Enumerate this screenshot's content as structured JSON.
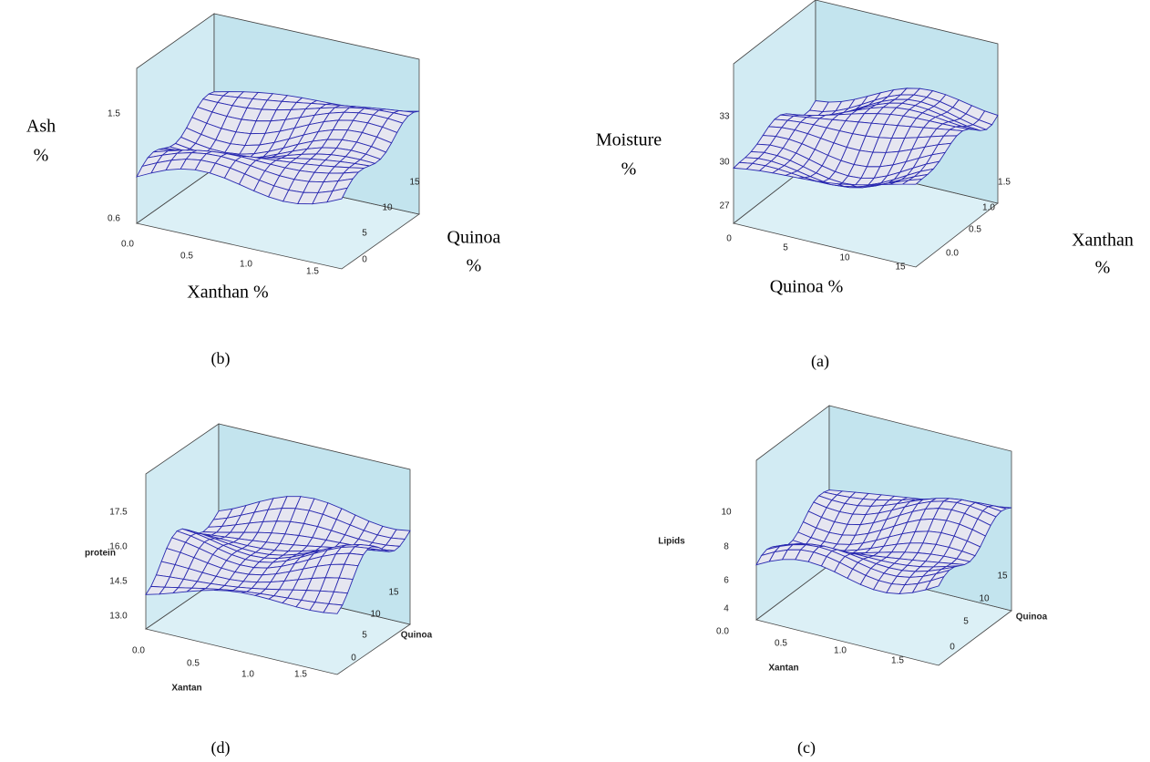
{
  "panels": [
    {
      "caption": "(b)",
      "z_title": [
        "Ash",
        "%"
      ],
      "z_ticks": [
        "1.5",
        "0.6"
      ],
      "x_title": "Xanthan %",
      "x_ticks": [
        "0.0",
        "0.5",
        "1.0",
        "1.5"
      ],
      "y_title": [
        "Quinoa",
        "%"
      ],
      "y_ticks": [
        "0",
        "5",
        "10",
        "15"
      ]
    },
    {
      "caption": "(a)",
      "z_title": [
        "Moisture",
        "%"
      ],
      "z_ticks": [
        "33",
        "30",
        "27"
      ],
      "x_title": "Quinoa %",
      "x_ticks": [
        "0",
        "5",
        "10",
        "15"
      ],
      "y_title": [
        "Xanthan",
        "%"
      ],
      "y_ticks": [
        "0.0",
        "0.5",
        "1.0",
        "1.5"
      ]
    },
    {
      "caption": "(d)",
      "z_title": "protein",
      "z_ticks": [
        "17.5",
        "16.0",
        "14.5",
        "13.0"
      ],
      "x_title": "Xantan",
      "x_ticks": [
        "0.0",
        "0.5",
        "1.0",
        "1.5"
      ],
      "y_title": "Quinoa",
      "y_ticks": [
        "0",
        "5",
        "10",
        "15"
      ]
    },
    {
      "caption": "(c)",
      "z_title": "Lipids",
      "z_ticks": [
        "10",
        "8",
        "6",
        "4"
      ],
      "x_title": "Xantan",
      "x_ticks": [
        "0.0",
        "0.5",
        "1.0",
        "1.5"
      ],
      "y_title": "Quinoa",
      "y_ticks": [
        "0",
        "5",
        "10",
        "15"
      ]
    }
  ]
}
